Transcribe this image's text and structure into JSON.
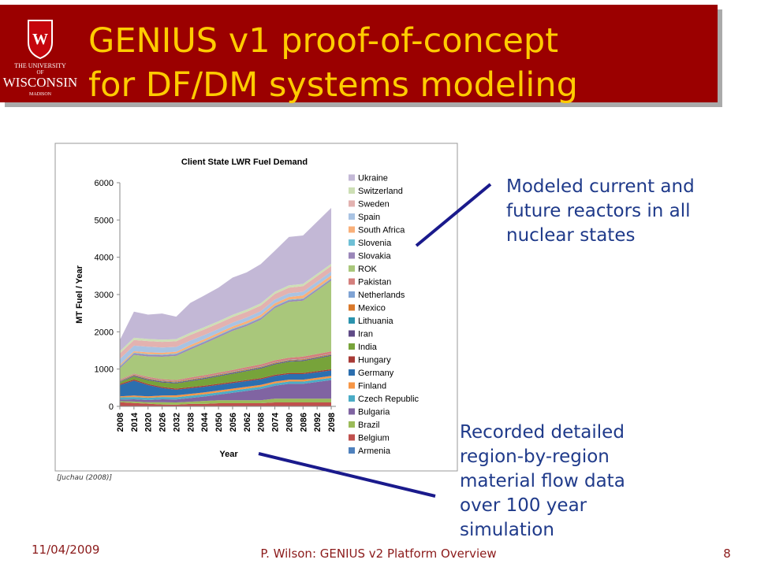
{
  "header": {
    "title_lines": [
      "GENIUS v1 proof-of-concept",
      "for DF/DM systems modeling"
    ],
    "logo_lines": [
      "THE UNIVERSITY",
      "OF",
      "WISCONSIN",
      "MADISON"
    ]
  },
  "chart_data": {
    "type": "area",
    "stacked": true,
    "title": "Client State LWR Fuel Demand",
    "x_label": "Year",
    "y_label": "MT Fuel / Year",
    "x": [
      2008,
      2014,
      2020,
      2026,
      2032,
      2038,
      2044,
      2050,
      2056,
      2062,
      2068,
      2074,
      2080,
      2086,
      2092,
      2098
    ],
    "xlim": [
      2008,
      2100
    ],
    "xticks": [
      2008,
      2014,
      2020,
      2026,
      2032,
      2038,
      2044,
      2050,
      2056,
      2062,
      2068,
      2074,
      2080,
      2086,
      2092,
      2098
    ],
    "ylim": [
      0,
      6000
    ],
    "yticks": [
      0,
      1000,
      2000,
      3000,
      4000,
      5000,
      6000
    ],
    "grid": false,
    "legend": "right",
    "series": [
      {
        "name": "Armenia",
        "color": "#4F81BD",
        "values": [
          10,
          10,
          10,
          10,
          5,
          5,
          5,
          5,
          5,
          5,
          5,
          5,
          5,
          5,
          5,
          5
        ]
      },
      {
        "name": "Belgium",
        "color": "#C0504D",
        "values": [
          100,
          80,
          60,
          40,
          40,
          60,
          60,
          80,
          80,
          80,
          80,
          100,
          100,
          100,
          100,
          100
        ]
      },
      {
        "name": "Brazil",
        "color": "#9BBB59",
        "values": [
          30,
          40,
          40,
          60,
          60,
          60,
          80,
          80,
          80,
          80,
          80,
          100,
          100,
          100,
          100,
          100
        ]
      },
      {
        "name": "Bulgaria",
        "color": "#8064A2",
        "values": [
          40,
          60,
          60,
          80,
          80,
          100,
          120,
          150,
          200,
          250,
          300,
          350,
          400,
          400,
          450,
          500
        ]
      },
      {
        "name": "Czech Republic",
        "color": "#4BACC6",
        "values": [
          60,
          60,
          60,
          60,
          60,
          60,
          60,
          60,
          60,
          60,
          60,
          60,
          60,
          60,
          60,
          60
        ]
      },
      {
        "name": "Finland",
        "color": "#F79646",
        "values": [
          30,
          40,
          40,
          40,
          50,
          50,
          50,
          50,
          50,
          50,
          50,
          50,
          50,
          50,
          50,
          50
        ]
      },
      {
        "name": "Germany",
        "color": "#2C6FAF",
        "values": [
          300,
          400,
          300,
          200,
          150,
          150,
          150,
          150,
          150,
          150,
          150,
          150,
          150,
          150,
          150,
          150
        ]
      },
      {
        "name": "Hungary",
        "color": "#A83A36",
        "values": [
          30,
          30,
          30,
          30,
          30,
          30,
          30,
          30,
          30,
          30,
          30,
          30,
          30,
          30,
          30,
          30
        ]
      },
      {
        "name": "India",
        "color": "#77A33A",
        "values": [
          50,
          80,
          100,
          120,
          140,
          160,
          180,
          200,
          220,
          240,
          260,
          280,
          300,
          320,
          340,
          360
        ]
      },
      {
        "name": "Iran",
        "color": "#5F4A86",
        "values": [
          10,
          20,
          20,
          20,
          20,
          20,
          20,
          20,
          20,
          20,
          20,
          20,
          20,
          20,
          20,
          20
        ]
      },
      {
        "name": "Lithuania",
        "color": "#2B93AE",
        "values": [
          10,
          10,
          10,
          10,
          10,
          10,
          10,
          10,
          10,
          10,
          10,
          10,
          10,
          10,
          10,
          10
        ]
      },
      {
        "name": "Mexico",
        "color": "#D9782A",
        "values": [
          20,
          20,
          20,
          20,
          20,
          20,
          20,
          20,
          20,
          20,
          20,
          20,
          20,
          20,
          20,
          20
        ]
      },
      {
        "name": "Netherlands",
        "color": "#7FA3D4",
        "values": [
          10,
          10,
          10,
          10,
          10,
          10,
          10,
          10,
          10,
          10,
          10,
          10,
          10,
          10,
          10,
          10
        ]
      },
      {
        "name": "Pakistan",
        "color": "#D47F7D",
        "values": [
          20,
          20,
          30,
          30,
          30,
          40,
          40,
          40,
          40,
          50,
          50,
          50,
          50,
          60,
          60,
          60
        ]
      },
      {
        "name": "ROK",
        "color": "#A9C77B",
        "values": [
          300,
          500,
          550,
          600,
          650,
          750,
          850,
          950,
          1050,
          1100,
          1200,
          1400,
          1500,
          1500,
          1700,
          1900
        ]
      },
      {
        "name": "Slovakia",
        "color": "#9A86B9",
        "values": [
          40,
          40,
          40,
          40,
          40,
          40,
          40,
          40,
          40,
          40,
          40,
          40,
          40,
          40,
          40,
          40
        ]
      },
      {
        "name": "Slovenia",
        "color": "#6FC0D6",
        "values": [
          20,
          20,
          20,
          20,
          20,
          20,
          20,
          20,
          20,
          20,
          20,
          20,
          20,
          20,
          20,
          20
        ]
      },
      {
        "name": "South Africa",
        "color": "#F9B07A",
        "values": [
          40,
          40,
          50,
          50,
          50,
          60,
          60,
          60,
          60,
          70,
          70,
          70,
          70,
          80,
          80,
          80
        ]
      },
      {
        "name": "Spain",
        "color": "#A9C3E3",
        "values": [
          150,
          150,
          150,
          140,
          130,
          120,
          110,
          100,
          100,
          100,
          100,
          100,
          100,
          100,
          100,
          100
        ]
      },
      {
        "name": "Sweden",
        "color": "#E3B2B0",
        "values": [
          150,
          150,
          150,
          150,
          150,
          150,
          150,
          150,
          150,
          150,
          150,
          150,
          150,
          150,
          150,
          150
        ]
      },
      {
        "name": "Switzerland",
        "color": "#CDDFB5",
        "values": [
          60,
          60,
          60,
          60,
          60,
          60,
          60,
          60,
          60,
          60,
          60,
          60,
          60,
          60,
          60,
          60
        ]
      },
      {
        "name": "Ukraine",
        "color": "#C3B8D6",
        "values": [
          300,
          700,
          650,
          700,
          600,
          800,
          850,
          900,
          1000,
          1000,
          1050,
          1100,
          1300,
          1300,
          1400,
          1500
        ]
      }
    ]
  },
  "source": "[Juchau (2008)]",
  "callouts": [
    {
      "lines": [
        "Modeled current and",
        "future reactors in all",
        "nuclear states"
      ]
    },
    {
      "lines": [
        "Recorded detailed",
        "region-by-region",
        "material flow data",
        "over 100 year",
        "simulation"
      ]
    }
  ],
  "footer": {
    "date": "11/04/2009",
    "center": "P. Wilson: GENIUS v2 Platform Overview",
    "page": "8"
  }
}
